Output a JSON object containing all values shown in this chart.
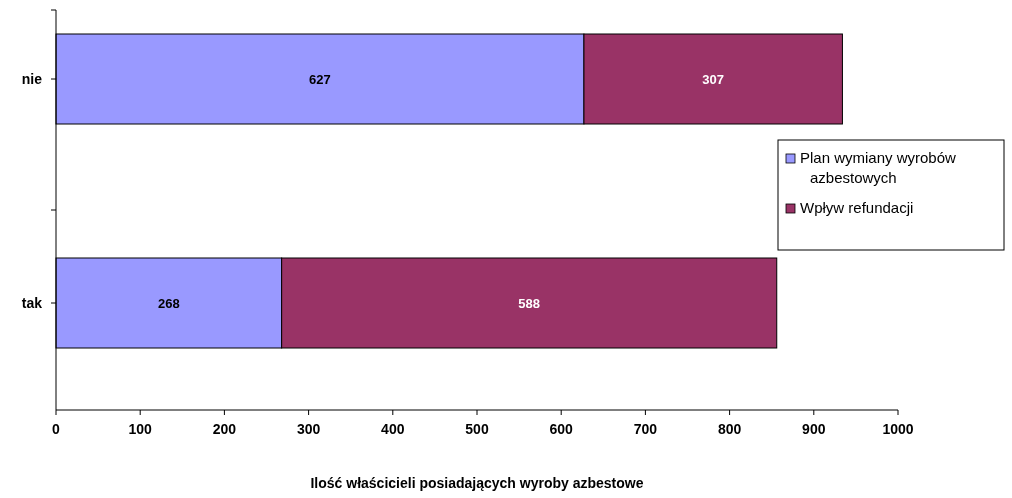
{
  "chart_data": {
    "type": "bar",
    "orientation": "horizontal",
    "stacked": true,
    "categories": [
      "nie",
      "tak"
    ],
    "series": [
      {
        "name": "Plan wymiany wyrobów azbestowych",
        "color": "#9999ff",
        "values": [
          627,
          268
        ]
      },
      {
        "name": "Wpływ refundacji",
        "color": "#993366",
        "values": [
          307,
          588
        ]
      }
    ],
    "xlim": [
      0,
      1000
    ],
    "xticks": [
      0,
      100,
      200,
      300,
      400,
      500,
      600,
      700,
      800,
      900,
      1000
    ],
    "xlabel": "Ilość właścicieli posiadających wyroby azbestowe",
    "data_labels": true,
    "legend": "right",
    "grid": false
  }
}
